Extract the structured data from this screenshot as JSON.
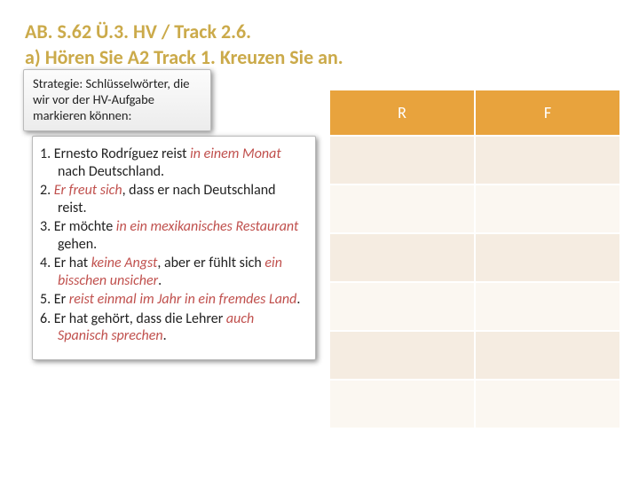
{
  "title": {
    "line1": "AB. S.62 Ü.3. HV / Track 2.6.",
    "line2_a": "a) Hören Sie A2 Track 1.",
    "line2_b": " Kreuzen Sie an."
  },
  "hint": "Strategie: Schlüsselwörter, die wir vor der HV-Aufgabe markieren können:",
  "stmts": [
    {
      "n": "1.",
      "a": " Ernesto Rodríguez reist ",
      "k1": "in einem Monat",
      "b": " nach Deutschland."
    },
    {
      "n": "2.",
      "a": " ",
      "k1": "Er freut sich",
      "b": ", dass er nach Deutschland reist."
    },
    {
      "n": "3.",
      "a": " Er möchte ",
      "k1": "in ein mexikanisches Restaurant",
      "b": " gehen."
    },
    {
      "n": "4.",
      "a": " Er hat ",
      "k1": "keine Angst",
      "b": ", aber er fühlt sich ",
      "k2": "ein bisschen unsicher",
      "c": "."
    },
    {
      "n": "5.",
      "a": " Er ",
      "k1": "reist einmal im Jahr in ein fremdes Land",
      "b": "."
    },
    {
      "n": "6.",
      "a": " Er hat gehört, dass die Lehrer ",
      "k1": "auch Spanisch sprechen",
      "b": "."
    }
  ],
  "table": {
    "header_r": "R",
    "header_f": "F",
    "rows": 6,
    "colors": {
      "header_bg": "#e8a33d",
      "header_fg": "#ffffff",
      "row_dark": "#f5ece1",
      "row_light": "#fbf7f1"
    }
  },
  "colors": {
    "title": "#cbaa4a",
    "keyword": "#c0504d"
  }
}
